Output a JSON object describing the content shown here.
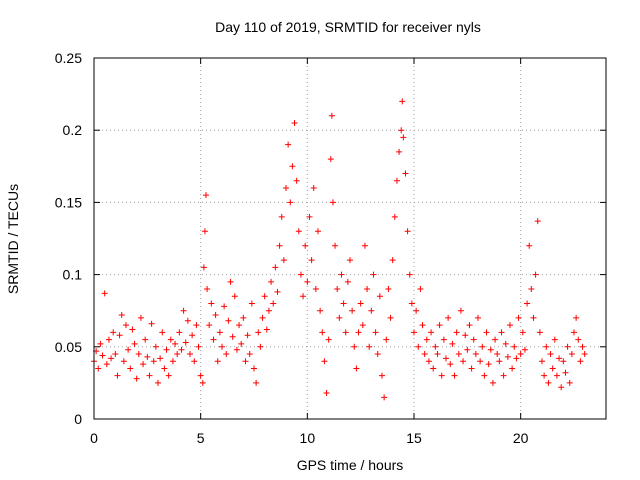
{
  "chart_data": {
    "type": "scatter",
    "title": "Day 110 of 2019, SRMTID for receiver nyls",
    "xlabel": "GPS time / hours",
    "ylabel": "SRMTID / TECUs",
    "xlim": [
      0,
      24
    ],
    "ylim": [
      0,
      0.25
    ],
    "xticks": [
      0,
      5,
      10,
      15,
      20
    ],
    "yticks": [
      0,
      0.05,
      0.1,
      0.15,
      0.2,
      0.25
    ],
    "xtick_labels": [
      "0",
      "5",
      "10",
      "15",
      "20"
    ],
    "ytick_labels": [
      "0",
      "0.05",
      "0.1",
      "0.15",
      "0.2",
      "0.25"
    ],
    "grid": true,
    "marker": "+",
    "color": "#ff0000",
    "series": [
      {
        "name": "",
        "points": [
          [
            0.0,
            0.04
          ],
          [
            0.1,
            0.047
          ],
          [
            0.2,
            0.035
          ],
          [
            0.3,
            0.052
          ],
          [
            0.4,
            0.044
          ],
          [
            0.5,
            0.087
          ],
          [
            0.6,
            0.038
          ],
          [
            0.7,
            0.055
          ],
          [
            0.8,
            0.042
          ],
          [
            0.9,
            0.06
          ],
          [
            1.0,
            0.045
          ],
          [
            1.1,
            0.03
          ],
          [
            1.2,
            0.058
          ],
          [
            1.3,
            0.072
          ],
          [
            1.4,
            0.04
          ],
          [
            1.5,
            0.065
          ],
          [
            1.6,
            0.048
          ],
          [
            1.7,
            0.035
          ],
          [
            1.8,
            0.062
          ],
          [
            1.9,
            0.052
          ],
          [
            2.0,
            0.028
          ],
          [
            2.1,
            0.045
          ],
          [
            2.2,
            0.07
          ],
          [
            2.3,
            0.038
          ],
          [
            2.4,
            0.055
          ],
          [
            2.5,
            0.043
          ],
          [
            2.6,
            0.03
          ],
          [
            2.7,
            0.066
          ],
          [
            2.8,
            0.04
          ],
          [
            2.9,
            0.05
          ],
          [
            3.0,
            0.025
          ],
          [
            3.1,
            0.042
          ],
          [
            3.2,
            0.06
          ],
          [
            3.3,
            0.035
          ],
          [
            3.4,
            0.048
          ],
          [
            3.5,
            0.03
          ],
          [
            3.6,
            0.055
          ],
          [
            3.7,
            0.04
          ],
          [
            3.8,
            0.052
          ],
          [
            3.9,
            0.045
          ],
          [
            4.0,
            0.06
          ],
          [
            4.1,
            0.048
          ],
          [
            4.2,
            0.075
          ],
          [
            4.3,
            0.053
          ],
          [
            4.4,
            0.068
          ],
          [
            4.5,
            0.045
          ],
          [
            4.6,
            0.058
          ],
          [
            4.7,
            0.04
          ],
          [
            4.8,
            0.065
          ],
          [
            4.9,
            0.05
          ],
          [
            5.0,
            0.03
          ],
          [
            5.1,
            0.025
          ],
          [
            5.15,
            0.105
          ],
          [
            5.2,
            0.13
          ],
          [
            5.25,
            0.155
          ],
          [
            5.3,
            0.09
          ],
          [
            5.4,
            0.065
          ],
          [
            5.5,
            0.08
          ],
          [
            5.6,
            0.055
          ],
          [
            5.7,
            0.072
          ],
          [
            5.8,
            0.04
          ],
          [
            5.9,
            0.06
          ],
          [
            6.0,
            0.05
          ],
          [
            6.1,
            0.078
          ],
          [
            6.2,
            0.045
          ],
          [
            6.3,
            0.068
          ],
          [
            6.4,
            0.095
          ],
          [
            6.5,
            0.057
          ],
          [
            6.6,
            0.085
          ],
          [
            6.7,
            0.048
          ],
          [
            6.8,
            0.065
          ],
          [
            6.9,
            0.052
          ],
          [
            7.0,
            0.07
          ],
          [
            7.1,
            0.04
          ],
          [
            7.2,
            0.058
          ],
          [
            7.3,
            0.045
          ],
          [
            7.4,
            0.08
          ],
          [
            7.5,
            0.035
          ],
          [
            7.6,
            0.025
          ],
          [
            7.7,
            0.06
          ],
          [
            7.8,
            0.05
          ],
          [
            7.9,
            0.07
          ],
          [
            8.0,
            0.085
          ],
          [
            8.1,
            0.062
          ],
          [
            8.2,
            0.075
          ],
          [
            8.3,
            0.095
          ],
          [
            8.4,
            0.08
          ],
          [
            8.5,
            0.105
          ],
          [
            8.6,
            0.088
          ],
          [
            8.7,
            0.12
          ],
          [
            8.8,
            0.14
          ],
          [
            8.9,
            0.11
          ],
          [
            9.0,
            0.16
          ],
          [
            9.1,
            0.19
          ],
          [
            9.2,
            0.15
          ],
          [
            9.3,
            0.175
          ],
          [
            9.4,
            0.205
          ],
          [
            9.5,
            0.165
          ],
          [
            9.6,
            0.13
          ],
          [
            9.7,
            0.1
          ],
          [
            9.8,
            0.085
          ],
          [
            9.9,
            0.12
          ],
          [
            10.0,
            0.095
          ],
          [
            10.1,
            0.14
          ],
          [
            10.2,
            0.11
          ],
          [
            10.3,
            0.16
          ],
          [
            10.4,
            0.09
          ],
          [
            10.5,
            0.13
          ],
          [
            10.6,
            0.075
          ],
          [
            10.7,
            0.06
          ],
          [
            10.8,
            0.04
          ],
          [
            10.9,
            0.018
          ],
          [
            11.0,
            0.055
          ],
          [
            11.1,
            0.18
          ],
          [
            11.15,
            0.21
          ],
          [
            11.2,
            0.15
          ],
          [
            11.3,
            0.12
          ],
          [
            11.4,
            0.09
          ],
          [
            11.5,
            0.07
          ],
          [
            11.6,
            0.1
          ],
          [
            11.7,
            0.08
          ],
          [
            11.8,
            0.06
          ],
          [
            11.9,
            0.095
          ],
          [
            12.0,
            0.11
          ],
          [
            12.1,
            0.075
          ],
          [
            12.2,
            0.05
          ],
          [
            12.3,
            0.035
          ],
          [
            12.4,
            0.06
          ],
          [
            12.5,
            0.08
          ],
          [
            12.6,
            0.065
          ],
          [
            12.7,
            0.12
          ],
          [
            12.8,
            0.09
          ],
          [
            12.9,
            0.05
          ],
          [
            13.0,
            0.075
          ],
          [
            13.1,
            0.1
          ],
          [
            13.2,
            0.06
          ],
          [
            13.3,
            0.045
          ],
          [
            13.4,
            0.085
          ],
          [
            13.5,
            0.03
          ],
          [
            13.6,
            0.015
          ],
          [
            13.7,
            0.055
          ],
          [
            13.8,
            0.09
          ],
          [
            13.9,
            0.07
          ],
          [
            14.0,
            0.11
          ],
          [
            14.1,
            0.14
          ],
          [
            14.2,
            0.165
          ],
          [
            14.3,
            0.185
          ],
          [
            14.4,
            0.2
          ],
          [
            14.45,
            0.22
          ],
          [
            14.5,
            0.195
          ],
          [
            14.6,
            0.17
          ],
          [
            14.7,
            0.13
          ],
          [
            14.8,
            0.1
          ],
          [
            14.9,
            0.08
          ],
          [
            15.0,
            0.06
          ],
          [
            15.1,
            0.075
          ],
          [
            15.2,
            0.05
          ],
          [
            15.3,
            0.09
          ],
          [
            15.4,
            0.065
          ],
          [
            15.5,
            0.045
          ],
          [
            15.6,
            0.055
          ],
          [
            15.7,
            0.04
          ],
          [
            15.8,
            0.06
          ],
          [
            15.9,
            0.035
          ],
          [
            16.0,
            0.05
          ],
          [
            16.1,
            0.045
          ],
          [
            16.2,
            0.065
          ],
          [
            16.3,
            0.03
          ],
          [
            16.4,
            0.055
          ],
          [
            16.5,
            0.042
          ],
          [
            16.6,
            0.07
          ],
          [
            16.7,
            0.038
          ],
          [
            16.8,
            0.052
          ],
          [
            16.9,
            0.03
          ],
          [
            17.0,
            0.06
          ],
          [
            17.1,
            0.045
          ],
          [
            17.2,
            0.075
          ],
          [
            17.3,
            0.04
          ],
          [
            17.4,
            0.058
          ],
          [
            17.5,
            0.048
          ],
          [
            17.6,
            0.065
          ],
          [
            17.7,
            0.035
          ],
          [
            17.8,
            0.055
          ],
          [
            17.9,
            0.045
          ],
          [
            18.0,
            0.07
          ],
          [
            18.1,
            0.04
          ],
          [
            18.2,
            0.05
          ],
          [
            18.3,
            0.03
          ],
          [
            18.4,
            0.06
          ],
          [
            18.5,
            0.038
          ],
          [
            18.6,
            0.048
          ],
          [
            18.7,
            0.025
          ],
          [
            18.8,
            0.055
          ],
          [
            18.9,
            0.045
          ],
          [
            19.0,
            0.04
          ],
          [
            19.1,
            0.06
          ],
          [
            19.2,
            0.03
          ],
          [
            19.3,
            0.052
          ],
          [
            19.4,
            0.043
          ],
          [
            19.5,
            0.065
          ],
          [
            19.6,
            0.035
          ],
          [
            19.7,
            0.05
          ],
          [
            19.8,
            0.042
          ],
          [
            19.9,
            0.07
          ],
          [
            20.0,
            0.045
          ],
          [
            20.1,
            0.06
          ],
          [
            20.2,
            0.048
          ],
          [
            20.3,
            0.08
          ],
          [
            20.4,
            0.12
          ],
          [
            20.5,
            0.09
          ],
          [
            20.6,
            0.07
          ],
          [
            20.7,
            0.1
          ],
          [
            20.8,
            0.137
          ],
          [
            20.9,
            0.06
          ],
          [
            21.0,
            0.04
          ],
          [
            21.1,
            0.03
          ],
          [
            21.2,
            0.05
          ],
          [
            21.3,
            0.025
          ],
          [
            21.4,
            0.045
          ],
          [
            21.5,
            0.035
          ],
          [
            21.6,
            0.055
          ],
          [
            21.7,
            0.03
          ],
          [
            21.8,
            0.042
          ],
          [
            21.9,
            0.022
          ],
          [
            22.0,
            0.04
          ],
          [
            22.1,
            0.032
          ],
          [
            22.2,
            0.05
          ],
          [
            22.3,
            0.025
          ],
          [
            22.4,
            0.045
          ],
          [
            22.5,
            0.06
          ],
          [
            22.6,
            0.07
          ],
          [
            22.7,
            0.055
          ],
          [
            22.8,
            0.04
          ],
          [
            22.9,
            0.05
          ],
          [
            23.0,
            0.045
          ]
        ]
      }
    ]
  }
}
